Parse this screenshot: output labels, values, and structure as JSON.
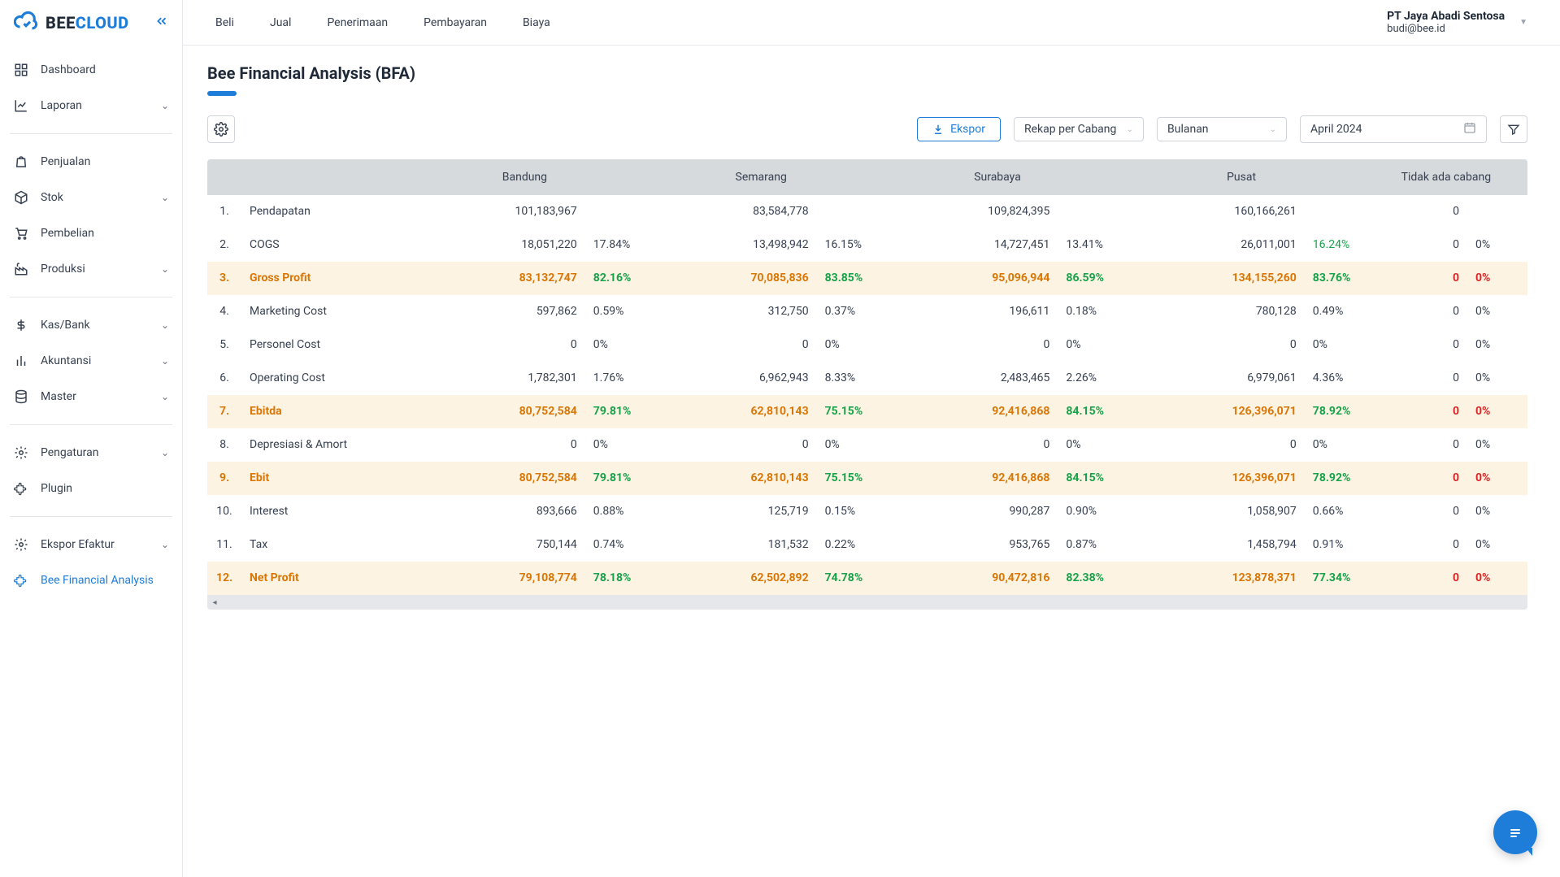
{
  "brand": {
    "name_prefix": "BEE",
    "name_suffix": "CLOUD",
    "accent": "#1e7dd8"
  },
  "sidebar": {
    "items": [
      {
        "label": "Dashboard",
        "icon": "grid"
      },
      {
        "label": "Laporan",
        "icon": "chart",
        "expandable": true
      }
    ],
    "items2": [
      {
        "label": "Penjualan",
        "icon": "bag"
      },
      {
        "label": "Stok",
        "icon": "box",
        "expandable": true
      },
      {
        "label": "Pembelian",
        "icon": "cart"
      },
      {
        "label": "Produksi",
        "icon": "factory",
        "expandable": true
      }
    ],
    "items3": [
      {
        "label": "Kas/Bank",
        "icon": "dollar",
        "expandable": true
      },
      {
        "label": "Akuntansi",
        "icon": "bars",
        "expandable": true
      },
      {
        "label": "Master",
        "icon": "db",
        "expandable": true
      }
    ],
    "items4": [
      {
        "label": "Pengaturan",
        "icon": "gear",
        "expandable": true
      },
      {
        "label": "Plugin",
        "icon": "puzzle"
      }
    ],
    "items5": [
      {
        "label": "Ekspor Efaktur",
        "icon": "gear",
        "expandable": true
      },
      {
        "label": "Bee Financial Analysis",
        "icon": "puzzle",
        "active": true
      }
    ]
  },
  "topnav": [
    "Beli",
    "Jual",
    "Penerimaan",
    "Pembayaran",
    "Biaya"
  ],
  "user": {
    "company": "PT Jaya Abadi Sentosa",
    "email": "budi@bee.id"
  },
  "page": {
    "title": "Bee Financial Analysis (BFA)"
  },
  "toolbar": {
    "export_label": "Ekspor",
    "group_by": "Rekap per Cabang",
    "period_type": "Bulanan",
    "period": "April 2024"
  },
  "table": {
    "columns": [
      "Bandung",
      "Semarang",
      "Surabaya",
      "Pusat",
      "Tidak ada cabang"
    ],
    "rows": [
      {
        "n": "1.",
        "label": "Pendapatan",
        "hi": false,
        "cells": [
          [
            "101,183,967",
            ""
          ],
          [
            "83,584,778",
            ""
          ],
          [
            "109,824,395",
            ""
          ],
          [
            "160,166,261",
            ""
          ],
          [
            "0",
            ""
          ]
        ]
      },
      {
        "n": "2.",
        "label": "COGS",
        "hi": false,
        "cells": [
          [
            "18,051,220",
            "17.84%"
          ],
          [
            "13,498,942",
            "16.15%"
          ],
          [
            "14,727,451",
            "13.41%"
          ],
          [
            "26,011,001",
            "16.24%",
            "green"
          ],
          [
            "0",
            "0%"
          ]
        ]
      },
      {
        "n": "3.",
        "label": "Gross Profit",
        "hi": true,
        "cells": [
          [
            "83,132,747",
            "82.16%",
            "green"
          ],
          [
            "70,085,836",
            "83.85%",
            "green"
          ],
          [
            "95,096,944",
            "86.59%",
            "green"
          ],
          [
            "134,155,260",
            "83.76%",
            "green"
          ],
          [
            "0",
            "0%",
            "red"
          ]
        ]
      },
      {
        "n": "4.",
        "label": "Marketing Cost",
        "hi": false,
        "cells": [
          [
            "597,862",
            "0.59%"
          ],
          [
            "312,750",
            "0.37%"
          ],
          [
            "196,611",
            "0.18%"
          ],
          [
            "780,128",
            "0.49%"
          ],
          [
            "0",
            "0%"
          ]
        ]
      },
      {
        "n": "5.",
        "label": "Personel Cost",
        "hi": false,
        "cells": [
          [
            "0",
            "0%"
          ],
          [
            "0",
            "0%"
          ],
          [
            "0",
            "0%"
          ],
          [
            "0",
            "0%"
          ],
          [
            "0",
            "0%"
          ]
        ]
      },
      {
        "n": "6.",
        "label": "Operating Cost",
        "hi": false,
        "cells": [
          [
            "1,782,301",
            "1.76%"
          ],
          [
            "6,962,943",
            "8.33%"
          ],
          [
            "2,483,465",
            "2.26%"
          ],
          [
            "6,979,061",
            "4.36%"
          ],
          [
            "0",
            "0%"
          ]
        ]
      },
      {
        "n": "7.",
        "label": "Ebitda",
        "hi": true,
        "cells": [
          [
            "80,752,584",
            "79.81%",
            "green"
          ],
          [
            "62,810,143",
            "75.15%",
            "green"
          ],
          [
            "92,416,868",
            "84.15%",
            "green"
          ],
          [
            "126,396,071",
            "78.92%",
            "green"
          ],
          [
            "0",
            "0%",
            "red"
          ]
        ]
      },
      {
        "n": "8.",
        "label": "Depresiasi & Amort",
        "hi": false,
        "cells": [
          [
            "0",
            "0%"
          ],
          [
            "0",
            "0%"
          ],
          [
            "0",
            "0%"
          ],
          [
            "0",
            "0%"
          ],
          [
            "0",
            "0%"
          ]
        ]
      },
      {
        "n": "9.",
        "label": "Ebit",
        "hi": true,
        "cells": [
          [
            "80,752,584",
            "79.81%",
            "green"
          ],
          [
            "62,810,143",
            "75.15%",
            "green"
          ],
          [
            "92,416,868",
            "84.15%",
            "green"
          ],
          [
            "126,396,071",
            "78.92%",
            "green"
          ],
          [
            "0",
            "0%",
            "red"
          ]
        ]
      },
      {
        "n": "10.",
        "label": "Interest",
        "hi": false,
        "cells": [
          [
            "893,666",
            "0.88%"
          ],
          [
            "125,719",
            "0.15%"
          ],
          [
            "990,287",
            "0.90%"
          ],
          [
            "1,058,907",
            "0.66%"
          ],
          [
            "0",
            "0%"
          ]
        ]
      },
      {
        "n": "11.",
        "label": "Tax",
        "hi": false,
        "cells": [
          [
            "750,144",
            "0.74%"
          ],
          [
            "181,532",
            "0.22%"
          ],
          [
            "953,765",
            "0.87%"
          ],
          [
            "1,458,794",
            "0.91%"
          ],
          [
            "0",
            "0%"
          ]
        ]
      },
      {
        "n": "12.",
        "label": "Net Profit",
        "hi": true,
        "cells": [
          [
            "79,108,774",
            "78.18%",
            "green"
          ],
          [
            "62,502,892",
            "74.78%",
            "green"
          ],
          [
            "90,472,816",
            "82.38%",
            "green"
          ],
          [
            "123,878,371",
            "77.34%",
            "green"
          ],
          [
            "0",
            "0%",
            "red"
          ]
        ]
      }
    ]
  },
  "colors": {
    "accent": "#1e7dd8",
    "header_bg": "#d7dadd",
    "highlight_bg": "#fdf3e3",
    "highlight_fg": "#d97706",
    "green": "#16a34a",
    "red": "#dc2626",
    "border": "#e5e7eb"
  }
}
